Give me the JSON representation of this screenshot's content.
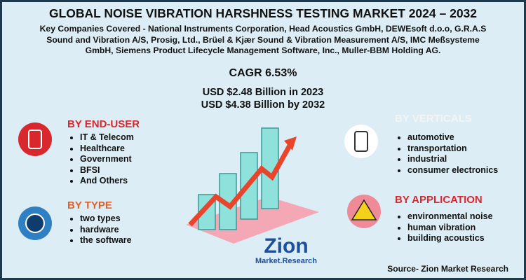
{
  "header": {
    "title": "GLOBAL NOISE VIBRATION HARSHNESS TESTING MARKET 2024 – 2032",
    "companies": [
      "Key Companies Covered - National Instruments Corporation, Head Acoustics GmbH, DEWEsoft d.o.o, G.R.A.S",
      "Sound and Vibration A/S, Prosig, Ltd., Brüel & Kjær Sound & Vibration Measurement A/S, IMC Meßsysteme",
      "GmbH, Siemens Product Lifecycle Management Software, Inc., Muller-BBM Holding AG."
    ],
    "cagr": "CAGR 6.53%",
    "values": [
      "USD $2.48 Billion in 2023",
      "USD $4.38 Billion  by 2032"
    ]
  },
  "sections": {
    "end_user": {
      "title": "BY END-USER",
      "items": [
        "IT & Telecom",
        "Healthcare",
        "Government",
        "BFSI",
        "And Others"
      ]
    },
    "type": {
      "title": "BY TYPE",
      "items": [
        "two types",
        "hardware",
        "the software"
      ]
    },
    "verticals": {
      "title": "BY VERTICALS",
      "items": [
        "automotive",
        "transportation",
        " industrial",
        "consumer electronics"
      ]
    },
    "application": {
      "title": "BY APPLICATION",
      "items": [
        "environmental noise",
        "human vibration",
        "building acoustics"
      ]
    }
  },
  "logo": {
    "name": "Zion",
    "sub": "Market.Research"
  },
  "source": "Source- Zion Market Research"
}
